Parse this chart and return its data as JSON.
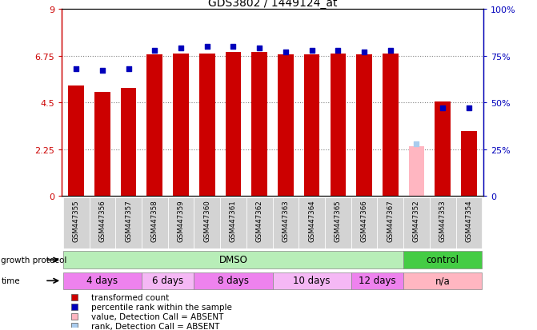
{
  "title": "GDS3802 / 1449124_at",
  "samples": [
    "GSM447355",
    "GSM447356",
    "GSM447357",
    "GSM447358",
    "GSM447359",
    "GSM447360",
    "GSM447361",
    "GSM447362",
    "GSM447363",
    "GSM447364",
    "GSM447365",
    "GSM447366",
    "GSM447367",
    "GSM447352",
    "GSM447353",
    "GSM447354"
  ],
  "red_values": [
    5.3,
    5.0,
    5.2,
    6.8,
    6.85,
    6.85,
    6.95,
    6.95,
    6.8,
    6.83,
    6.87,
    6.8,
    6.85,
    2.4,
    4.55,
    3.1
  ],
  "blue_values": [
    68,
    67,
    68,
    78,
    79,
    80,
    80,
    79,
    77,
    78,
    78,
    77,
    78,
    28,
    47,
    47
  ],
  "absent_red": [
    false,
    false,
    false,
    false,
    false,
    false,
    false,
    false,
    false,
    false,
    false,
    false,
    false,
    true,
    false,
    false
  ],
  "absent_blue": [
    false,
    false,
    false,
    false,
    false,
    false,
    false,
    false,
    false,
    false,
    false,
    false,
    false,
    true,
    false,
    false
  ],
  "growth_protocol_groups": [
    {
      "label": "DMSO",
      "start": 0,
      "end": 13,
      "color": "#B8EEB8"
    },
    {
      "label": "control",
      "start": 13,
      "end": 16,
      "color": "#44CC44"
    }
  ],
  "time_groups": [
    {
      "label": "4 days",
      "start": 0,
      "end": 3,
      "color": "#EE82EE"
    },
    {
      "label": "6 days",
      "start": 3,
      "end": 5,
      "color": "#EE82EE"
    },
    {
      "label": "8 days",
      "start": 5,
      "end": 8,
      "color": "#EE82EE"
    },
    {
      "label": "10 days",
      "start": 8,
      "end": 11,
      "color": "#EE82EE"
    },
    {
      "label": "12 days",
      "start": 11,
      "end": 13,
      "color": "#EE82EE"
    },
    {
      "label": "n/a",
      "start": 13,
      "end": 16,
      "color": "#FFB6C1"
    }
  ],
  "ylim_left": [
    0,
    9
  ],
  "ylim_right": [
    0,
    100
  ],
  "yticks_left": [
    0,
    2.25,
    4.5,
    6.75,
    9
  ],
  "yticks_right": [
    0,
    25,
    50,
    75,
    100
  ],
  "ytick_labels_left": [
    "0",
    "2.25",
    "4.5",
    "6.75",
    "9"
  ],
  "ytick_labels_right": [
    "0",
    "25%",
    "50%",
    "75%",
    "100%"
  ],
  "red_color": "#CC0000",
  "absent_red_color": "#FFB6C1",
  "blue_color": "#0000BB",
  "absent_blue_color": "#AACCEE",
  "bar_width": 0.6,
  "hline_values": [
    2.25,
    4.5,
    6.75
  ],
  "legend_items": [
    {
      "color": "#CC0000",
      "label": "transformed count"
    },
    {
      "color": "#0000BB",
      "label": "percentile rank within the sample"
    },
    {
      "color": "#FFB6C1",
      "label": "value, Detection Call = ABSENT"
    },
    {
      "color": "#AACCEE",
      "label": "rank, Detection Call = ABSENT"
    }
  ]
}
